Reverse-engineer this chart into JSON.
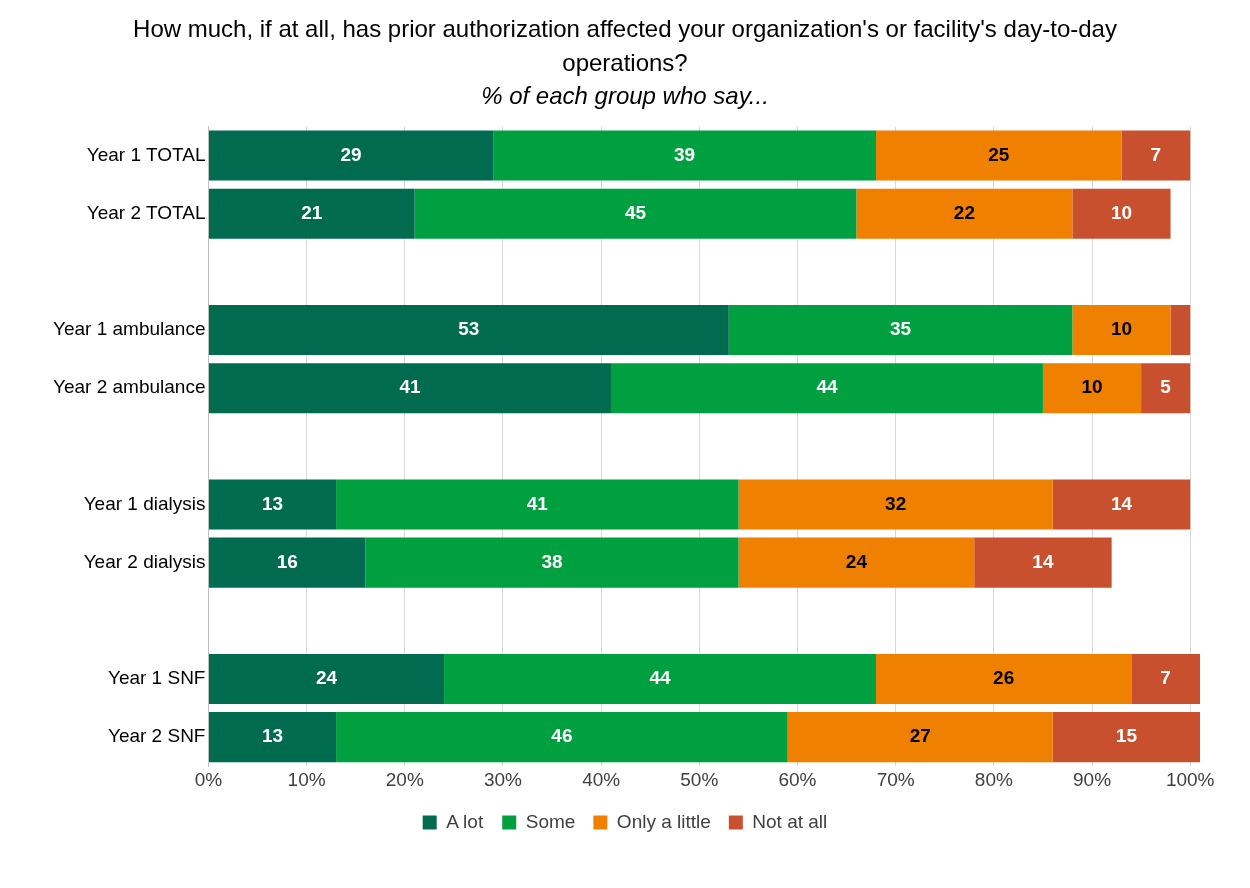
{
  "chart_data": {
    "type": "bar",
    "orientation": "horizontal",
    "stacked": true,
    "title": "How much, if at all, has prior authorization affected your organization's or facility's day-to-day operations?",
    "subtitle": "% of each group who say...",
    "categories": [
      "Year 1 TOTAL",
      "Year 2 TOTAL",
      null,
      "Year 1 ambulance",
      "Year 2 ambulance",
      null,
      "Year 1 dialysis",
      "Year 2 dialysis",
      null,
      "Year 1 SNF",
      "Year 2 SNF"
    ],
    "series": [
      {
        "name": "A lot",
        "color": "#006b4f",
        "values": [
          29,
          21,
          null,
          53,
          41,
          null,
          13,
          16,
          null,
          24,
          13
        ]
      },
      {
        "name": "Some",
        "color": "#00a040",
        "values": [
          39,
          45,
          null,
          35,
          44,
          null,
          41,
          38,
          null,
          44,
          46
        ]
      },
      {
        "name": "Only a little",
        "color": "#f08000",
        "values": [
          25,
          22,
          null,
          10,
          10,
          null,
          32,
          24,
          null,
          26,
          27
        ]
      },
      {
        "name": "Not at all",
        "color": "#c8502e",
        "values": [
          7,
          10,
          null,
          2,
          5,
          null,
          14,
          14,
          null,
          7,
          15
        ],
        "value_labels": [
          "7",
          "10",
          null,
          null,
          "5",
          null,
          "14",
          "14",
          null,
          "7",
          "15"
        ]
      }
    ],
    "xlim": [
      0,
      101
    ],
    "xticks": [
      {
        "value": 0,
        "label": "0%"
      },
      {
        "value": 10,
        "label": "10%"
      },
      {
        "value": 20,
        "label": "20%"
      },
      {
        "value": 30,
        "label": "30%"
      },
      {
        "value": 40,
        "label": "40%"
      },
      {
        "value": 50,
        "label": "50%"
      },
      {
        "value": 60,
        "label": "60%"
      },
      {
        "value": 70,
        "label": "70%"
      },
      {
        "value": 80,
        "label": "80%"
      },
      {
        "value": 90,
        "label": "90%"
      },
      {
        "value": 100,
        "label": "100%"
      }
    ],
    "grid": "x",
    "legend": "bottom",
    "data_labels": true
  }
}
